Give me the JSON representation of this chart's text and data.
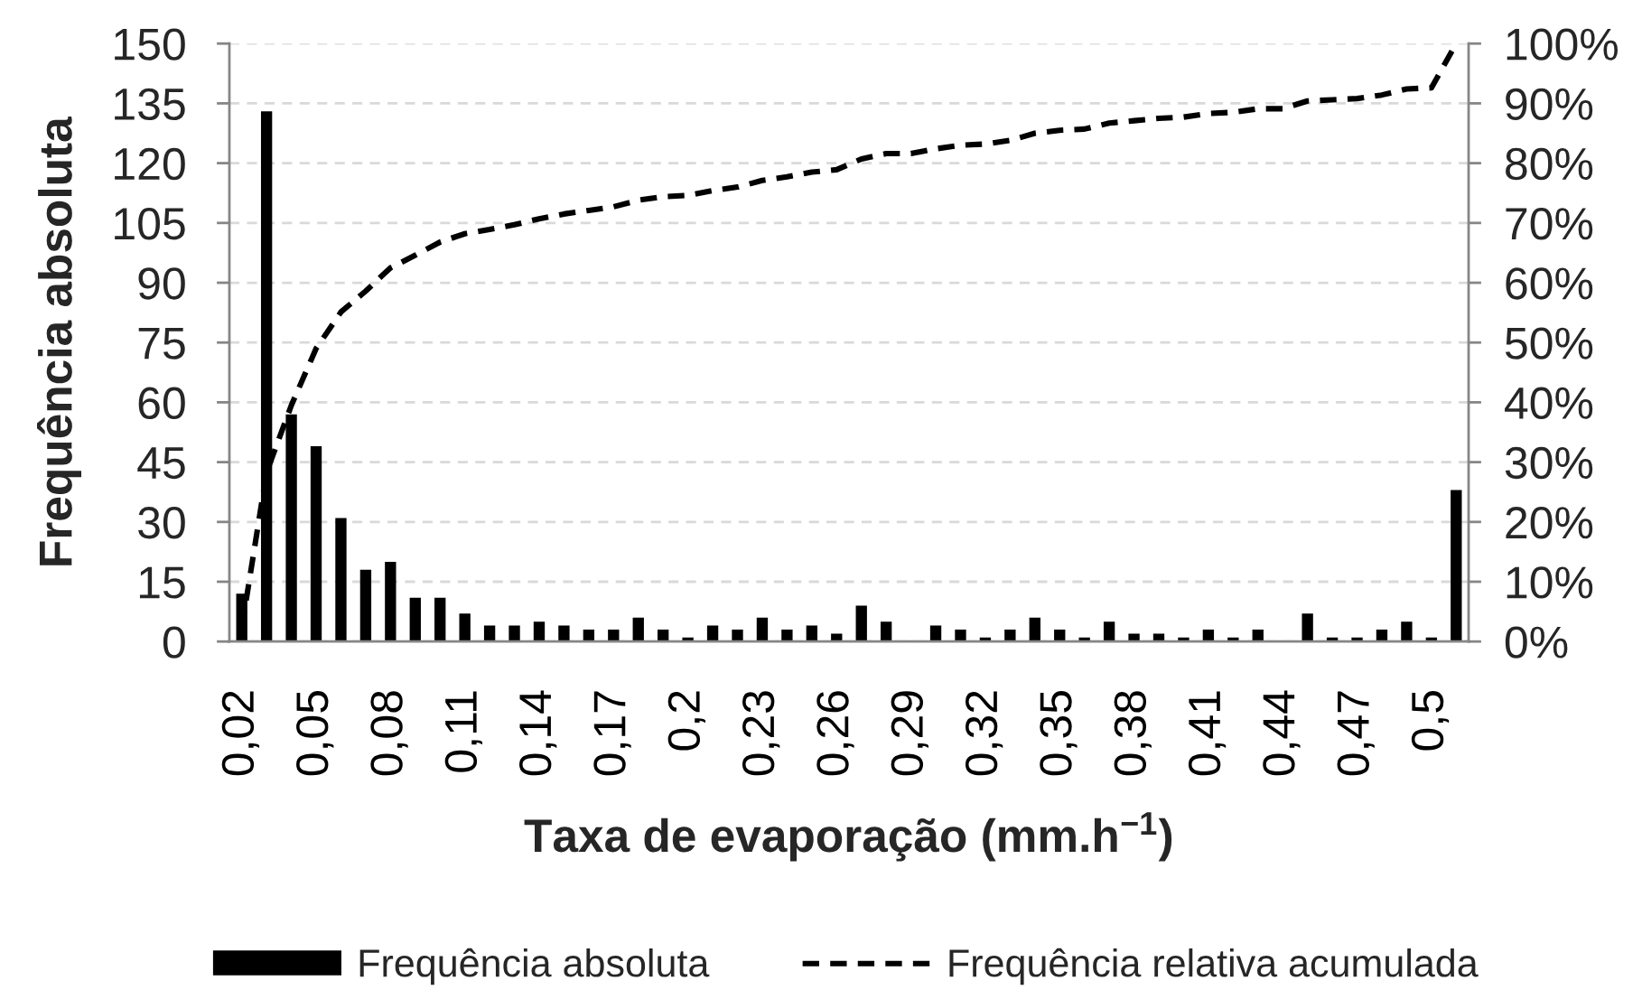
{
  "chart_data": {
    "type": "bar",
    "xlabel": "Taxa de evaporação (mm.h$^{−1}$)",
    "ylabel": "Frequência absoluta",
    "categories": [
      "0,02",
      null,
      null,
      "0,05",
      null,
      null,
      "0,08",
      null,
      null,
      "0,11",
      null,
      null,
      "0,14",
      null,
      null,
      "0,17",
      null,
      null,
      "0,2",
      null,
      null,
      "0,23",
      null,
      null,
      "0,26",
      null,
      null,
      "0,29",
      null,
      null,
      "0,32",
      null,
      null,
      "0,35",
      null,
      null,
      "0,38",
      null,
      null,
      "0,41",
      null,
      null,
      "0,44",
      null,
      null,
      "0,47",
      null,
      null,
      "0,5",
      null
    ],
    "series": [
      {
        "name": "Frequência absoluta",
        "color": "#000000",
        "values": [
          12,
          133,
          57,
          49,
          31,
          18,
          20,
          11,
          11,
          7,
          4,
          4,
          5,
          4,
          3,
          3,
          6,
          3,
          1,
          4,
          3,
          6,
          3,
          4,
          2,
          9,
          5,
          0,
          4,
          3,
          1,
          3,
          6,
          3,
          1,
          5,
          2,
          2,
          1,
          3,
          1,
          3,
          0,
          7,
          1,
          1,
          3,
          5,
          1,
          38
        ]
      },
      {
        "name": "Frequência relativa acumulada",
        "type": "line",
        "axis": "y2",
        "color": "#000000",
        "values": [
          2.3,
          28.3,
          39.5,
          49.0,
          55.1,
          58.6,
          62.5,
          64.6,
          66.8,
          68.2,
          68.9,
          69.7,
          70.7,
          71.5,
          72.1,
          72.7,
          73.8,
          74.4,
          74.6,
          75.4,
          76.0,
          77.1,
          77.7,
          78.5,
          78.9,
          80.7,
          81.6,
          81.6,
          82.4,
          83.0,
          83.2,
          83.8,
          85.0,
          85.5,
          85.7,
          86.7,
          87.1,
          87.5,
          87.7,
          88.3,
          88.5,
          89.1,
          89.1,
          90.4,
          90.6,
          90.8,
          91.4,
          92.4,
          92.6,
          100
        ]
      }
    ],
    "ylim": [
      0,
      150
    ],
    "yticks": [
      0,
      15,
      30,
      45,
      60,
      75,
      90,
      105,
      120,
      135,
      150
    ],
    "y2lim": [
      0,
      100
    ],
    "y2ticks": [
      {
        "value": 0,
        "label": "0%"
      },
      {
        "value": 10,
        "label": "10%"
      },
      {
        "value": 20,
        "label": "20%"
      },
      {
        "value": 30,
        "label": "30%"
      },
      {
        "value": 40,
        "label": "40%"
      },
      {
        "value": 50,
        "label": "50%"
      },
      {
        "value": 60,
        "label": "60%"
      },
      {
        "value": 70,
        "label": "70%"
      },
      {
        "value": 80,
        "label": "80%"
      },
      {
        "value": 90,
        "label": "90%"
      },
      {
        "value": 100,
        "label": "100%"
      }
    ],
    "grid": "y",
    "legend": "bottom",
    "line_style": "dashed"
  }
}
